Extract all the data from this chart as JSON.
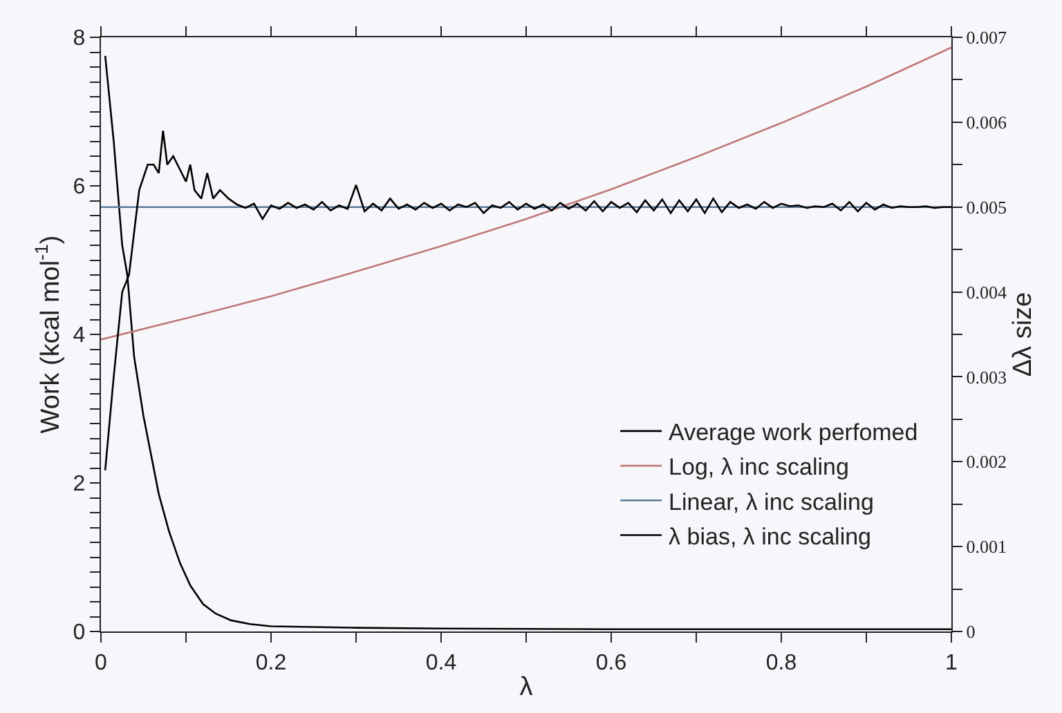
{
  "chart_data": {
    "type": "line",
    "xlabel": "λ",
    "ylabel": "Work (kcal mol$^{-1}$)",
    "y2label": "Δλ size",
    "xlim": [
      0,
      1
    ],
    "ylim": [
      0,
      8
    ],
    "y2lim": [
      0,
      0.007
    ],
    "xticks": [
      0,
      {
        "value": 0.1,
        "label": null
      },
      0.2,
      {
        "value": 0.3,
        "label": null
      },
      0.4,
      {
        "value": 0.5,
        "label": null
      },
      0.6,
      {
        "value": 0.7,
        "label": null
      },
      0.8,
      {
        "value": 0.9,
        "label": null
      },
      1
    ],
    "yticks": [
      0,
      {
        "value": 0.2,
        "label": null
      },
      {
        "value": 0.4,
        "label": null
      },
      {
        "value": 0.6,
        "label": null
      },
      {
        "value": 0.8,
        "label": null
      },
      {
        "value": 1,
        "label": null
      },
      {
        "value": 1.2,
        "label": null
      },
      {
        "value": 1.4,
        "label": null
      },
      {
        "value": 1.6,
        "label": null
      },
      {
        "value": 1.8,
        "label": null
      },
      2,
      {
        "value": 2.2,
        "label": null
      },
      {
        "value": 2.4,
        "label": null
      },
      {
        "value": 2.6,
        "label": null
      },
      {
        "value": 2.8,
        "label": null
      },
      {
        "value": 3,
        "label": null
      },
      {
        "value": 3.2,
        "label": null
      },
      {
        "value": 3.4,
        "label": null
      },
      {
        "value": 3.6,
        "label": null
      },
      {
        "value": 3.8,
        "label": null
      },
      4,
      {
        "value": 4.2,
        "label": null
      },
      {
        "value": 4.4,
        "label": null
      },
      {
        "value": 4.6,
        "label": null
      },
      {
        "value": 4.8,
        "label": null
      },
      {
        "value": 5,
        "label": null
      },
      {
        "value": 5.2,
        "label": null
      },
      {
        "value": 5.4,
        "label": null
      },
      {
        "value": 5.6,
        "label": null
      },
      {
        "value": 5.8,
        "label": null
      },
      6,
      {
        "value": 6.2,
        "label": null
      },
      {
        "value": 6.4,
        "label": null
      },
      {
        "value": 6.6,
        "label": null
      },
      {
        "value": 6.8,
        "label": null
      },
      {
        "value": 7,
        "label": null
      },
      {
        "value": 7.2,
        "label": null
      },
      {
        "value": 7.4,
        "label": null
      },
      {
        "value": 7.6,
        "label": null
      },
      {
        "value": 7.8,
        "label": null
      },
      8
    ],
    "y2ticks": [
      0,
      {
        "value": 0.0005,
        "label": null
      },
      0.001,
      {
        "value": 0.0015,
        "label": null
      },
      0.002,
      {
        "value": 0.0025,
        "label": null
      },
      0.003,
      {
        "value": 0.0035,
        "label": null
      },
      0.004,
      {
        "value": 0.0045,
        "label": null
      },
      0.005,
      {
        "value": 0.0055,
        "label": null
      },
      0.006,
      {
        "value": 0.0065,
        "label": null
      },
      0.007
    ],
    "grid": false,
    "legend": "bottom right",
    "marker": "none",
    "line_style": "solid",
    "series": [
      {
        "name": "Average work perfomed",
        "color": "#000000",
        "x": [
          0.005,
          0.015,
          0.025,
          0.031,
          0.039,
          0.05,
          0.068,
          0.08,
          0.093,
          0.105,
          0.12,
          0.135,
          0.153,
          0.175,
          0.2,
          0.3,
          0.4,
          0.6,
          0.8,
          1
        ],
        "values": [
          7.75,
          6.6,
          5.2,
          4.8,
          3.7,
          2.9,
          1.85,
          1.35,
          0.92,
          0.62,
          0.37,
          0.24,
          0.15,
          0.1,
          0.07,
          0.05,
          0.04,
          0.03,
          0.03,
          0.03
        ]
      },
      {
        "name": "Log, λ inc scaling",
        "color": "#c07878",
        "axis": "y2",
        "x": [
          0,
          0.1,
          0.2,
          0.3,
          0.4,
          0.5,
          0.6,
          0.7,
          0.8,
          0.9,
          1
        ],
        "values": [
          0.00344,
          0.00369,
          0.00395,
          0.00424,
          0.00454,
          0.00486,
          0.00521,
          0.00559,
          0.00599,
          0.00642,
          0.00688
        ]
      },
      {
        "name": "Linear, λ inc scaling",
        "color": "#5a7a96",
        "axis": "y2",
        "x": [
          0,
          1
        ],
        "values": [
          0.005,
          0.005
        ]
      },
      {
        "name": "λ bias, λ inc scaling",
        "color": "#000000",
        "axis": "y2",
        "x": [
          0.005,
          0.015,
          0.025,
          0.033,
          0.045,
          0.055,
          0.062,
          0.068,
          0.073,
          0.078,
          0.085,
          0.09,
          0.1,
          0.105,
          0.11,
          0.118,
          0.125,
          0.132,
          0.14,
          0.15,
          0.16,
          0.17,
          0.18,
          0.19,
          0.2,
          0.21,
          0.22,
          0.23,
          0.24,
          0.25,
          0.26,
          0.27,
          0.28,
          0.29,
          0.3,
          0.31,
          0.32,
          0.33,
          0.34,
          0.35,
          0.36,
          0.37,
          0.38,
          0.39,
          0.4,
          0.41,
          0.42,
          0.43,
          0.44,
          0.45,
          0.46,
          0.47,
          0.48,
          0.49,
          0.5,
          0.51,
          0.52,
          0.53,
          0.54,
          0.55,
          0.56,
          0.57,
          0.58,
          0.59,
          0.6,
          0.61,
          0.62,
          0.63,
          0.64,
          0.65,
          0.66,
          0.67,
          0.68,
          0.69,
          0.7,
          0.71,
          0.72,
          0.73,
          0.74,
          0.75,
          0.76,
          0.77,
          0.78,
          0.79,
          0.8,
          0.81,
          0.82,
          0.83,
          0.84,
          0.85,
          0.86,
          0.87,
          0.88,
          0.89,
          0.9,
          0.91,
          0.92,
          0.93,
          0.94,
          0.95,
          0.96,
          0.97,
          0.98,
          0.99,
          1
        ],
        "values": [
          0.0019,
          0.003,
          0.004,
          0.0042,
          0.0052,
          0.0055,
          0.0055,
          0.0054,
          0.0059,
          0.0055,
          0.0056,
          0.0055,
          0.0053,
          0.0055,
          0.0052,
          0.0051,
          0.0054,
          0.0051,
          0.0052,
          0.0051,
          0.00503,
          0.00499,
          0.00504,
          0.00486,
          0.00502,
          0.00498,
          0.00505,
          0.00499,
          0.00503,
          0.00497,
          0.00506,
          0.00496,
          0.00502,
          0.00498,
          0.00526,
          0.00495,
          0.00504,
          0.00496,
          0.0051,
          0.00498,
          0.00503,
          0.00497,
          0.00505,
          0.00499,
          0.00504,
          0.00496,
          0.00503,
          0.005,
          0.00505,
          0.00493,
          0.00502,
          0.00499,
          0.00506,
          0.00497,
          0.00504,
          0.00498,
          0.00503,
          0.00496,
          0.00505,
          0.00498,
          0.00504,
          0.00496,
          0.00507,
          0.00495,
          0.00506,
          0.00499,
          0.00505,
          0.00494,
          0.00508,
          0.00496,
          0.00509,
          0.00493,
          0.00508,
          0.00495,
          0.00509,
          0.00493,
          0.0051,
          0.00494,
          0.00506,
          0.00499,
          0.00503,
          0.00498,
          0.00506,
          0.00499,
          0.00504,
          0.00501,
          0.00502,
          0.00499,
          0.00501,
          0.005,
          0.00504,
          0.00496,
          0.00506,
          0.00495,
          0.00505,
          0.00497,
          0.00503,
          0.00499,
          0.00501,
          0.005,
          0.005,
          0.00501,
          0.00499,
          0.005,
          0.005
        ]
      }
    ]
  }
}
